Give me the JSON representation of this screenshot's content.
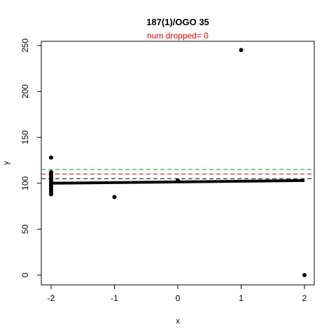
{
  "chart_data": {
    "type": "scatter",
    "title": "187(1)/OGO 35",
    "subtitle": "num dropped= 0",
    "xlabel": "x",
    "ylabel": "y",
    "xlim": [
      -2.0,
      2.0
    ],
    "ylim": [
      0,
      250
    ],
    "xticks": [
      "-2",
      "-1",
      "0",
      "1",
      "2"
    ],
    "yticks": [
      "0",
      "50",
      "100",
      "150",
      "200",
      "250"
    ],
    "colors": {
      "points": "#000000",
      "subtitle": "#e00000",
      "line_black": "#000000",
      "line_red": "#cc0000",
      "line_green": "#00a000"
    },
    "points": [
      {
        "x": -2,
        "y": 128
      },
      {
        "x": -2,
        "y": 112
      },
      {
        "x": -2,
        "y": 110
      },
      {
        "x": -2,
        "y": 108
      },
      {
        "x": -2,
        "y": 106
      },
      {
        "x": -2,
        "y": 104
      },
      {
        "x": -2,
        "y": 102
      },
      {
        "x": -2,
        "y": 100
      },
      {
        "x": -2,
        "y": 98
      },
      {
        "x": -2,
        "y": 96
      },
      {
        "x": -2,
        "y": 94
      },
      {
        "x": -2,
        "y": 92
      },
      {
        "x": -2,
        "y": 90
      },
      {
        "x": -2,
        "y": 88
      },
      {
        "x": -1,
        "y": 85
      },
      {
        "x": 0,
        "y": 103
      },
      {
        "x": 1,
        "y": 245
      },
      {
        "x": 2,
        "y": 0
      }
    ],
    "fit_line": {
      "x": [
        -2,
        2
      ],
      "y": [
        100,
        103
      ]
    },
    "hlines": [
      {
        "y": 105,
        "color": "#000000",
        "style": "dashed"
      },
      {
        "y": 110,
        "color": "#cc0000",
        "style": "dashed"
      },
      {
        "y": 115,
        "color": "#00a000",
        "style": "dashed"
      }
    ],
    "grid": false,
    "legend": "none"
  }
}
